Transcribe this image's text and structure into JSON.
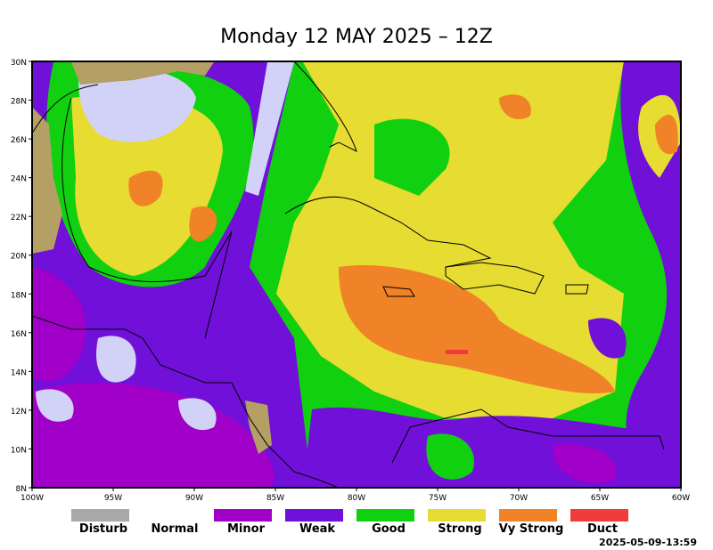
{
  "header": {
    "title": "Monday 12 MAY 2025 – 12Z"
  },
  "map": {
    "lat_labels": [
      "30N",
      "28N",
      "26N",
      "24N",
      "22N",
      "20N",
      "18N",
      "16N",
      "14N",
      "12N",
      "10N",
      "8N"
    ],
    "lon_labels": [
      "100W",
      "95W",
      "90W",
      "85W",
      "80W",
      "75W",
      "70W",
      "65W",
      "60W"
    ]
  },
  "legend": {
    "items": [
      {
        "label": "Disturb",
        "color": "#a8a8a8"
      },
      {
        "label": "Normal",
        "color": "#ffffff"
      },
      {
        "label": "Minor",
        "color": "#a000c8"
      },
      {
        "label": "Weak",
        "color": "#7010d8"
      },
      {
        "label": "Good",
        "color": "#10d010"
      },
      {
        "label": "Strong",
        "color": "#e6dc32"
      },
      {
        "label": "Vy Strong",
        "color": "#f08228"
      },
      {
        "label": "Duct",
        "color": "#f03c3c"
      }
    ]
  },
  "footer": {
    "timestamp": "2025-05-09-13:59"
  }
}
